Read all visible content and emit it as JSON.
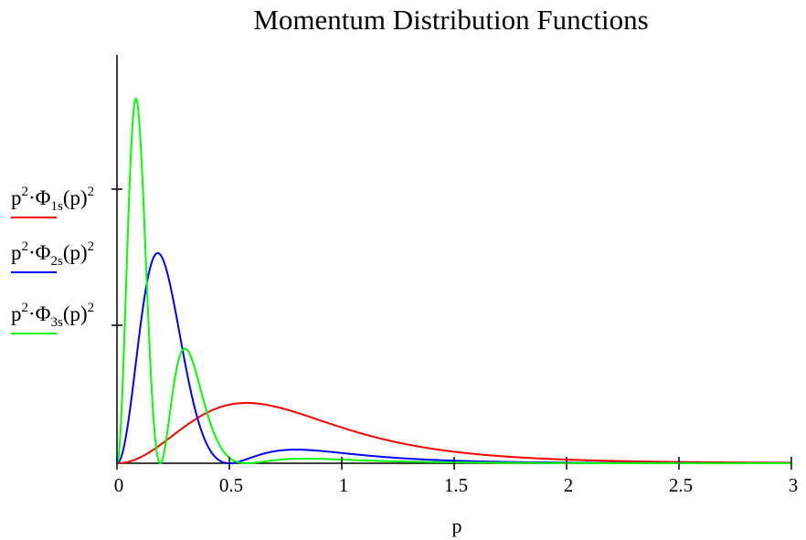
{
  "chart_data": {
    "type": "line",
    "title": "Momentum Distribution Functions",
    "xlabel": "p",
    "ylabel": "",
    "xlim": [
      0,
      3
    ],
    "xticks": [
      "0",
      "0.5",
      "1",
      "1.5",
      "2",
      "2.5",
      "3"
    ],
    "ylim": [
      0,
      1
    ],
    "grid": false,
    "legend": "left",
    "series": [
      {
        "name": "p2·Φ1s(p)2",
        "prefix": "p",
        "sup1": "2",
        "mid": "·Φ",
        "sub": "1s",
        "paren": "(p)",
        "sup2": "2",
        "color": "#ff0000",
        "alpha": 1
      },
      {
        "name": "p2·Φ2s(p)2",
        "prefix": "p",
        "sup1": "2",
        "mid": "·Φ",
        "sub": "2s",
        "paren": "(p)",
        "sup2": "2",
        "color": "#0000ff",
        "alpha": 2
      },
      {
        "name": "p2·Φ3s(p)2",
        "prefix": "p",
        "sup1": "2",
        "mid": "·Φ",
        "sub": "3s",
        "paren": "(p)",
        "sup2": "2",
        "color": "#00ff00",
        "alpha": 3
      }
    ]
  }
}
